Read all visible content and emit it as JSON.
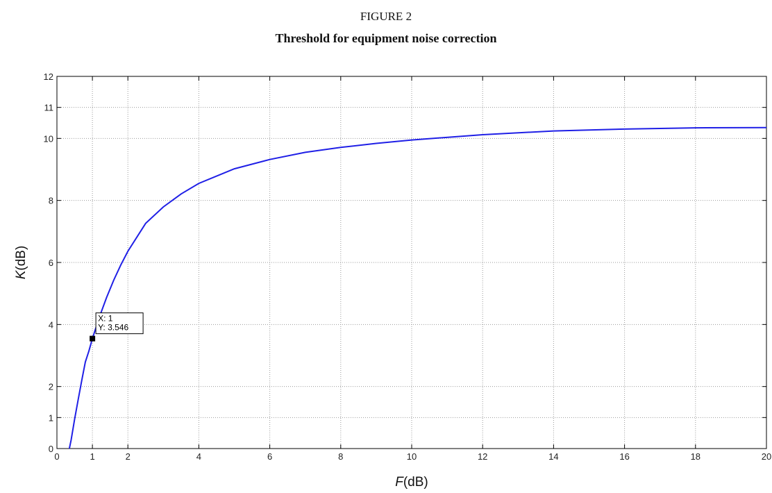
{
  "figure": {
    "label": "FIGURE 2",
    "title": "Threshold for equipment noise correction"
  },
  "chart_data": {
    "type": "line",
    "xlabel_var": "F",
    "xlabel_unit": "(dB)",
    "ylabel_var": "K",
    "ylabel_unit": "(dB)",
    "xlim": [
      0,
      20
    ],
    "ylim": [
      0,
      12
    ],
    "xticks": [
      0,
      1,
      2,
      4,
      6,
      8,
      10,
      12,
      14,
      16,
      18,
      20
    ],
    "yticks": [
      0,
      1,
      2,
      4,
      6,
      8,
      10,
      11,
      12
    ],
    "grid": true,
    "line_color": "#1f1fe6",
    "series": [
      {
        "x": [
          0.35,
          0.4,
          0.5,
          0.6,
          0.7,
          0.8,
          0.9,
          1.0,
          1.2,
          1.4,
          1.6,
          1.8,
          2.0,
          2.5,
          3.0,
          3.5,
          4.0,
          5.0,
          6.0,
          7.0,
          8.0,
          9.0,
          10.0,
          12.0,
          14.0,
          16.0,
          18.0,
          20.0
        ],
        "y": [
          0,
          0.27,
          0.95,
          1.59,
          2.2,
          2.79,
          3.14,
          3.546,
          4.25,
          4.87,
          5.43,
          5.92,
          6.36,
          7.26,
          7.79,
          8.21,
          8.55,
          9.02,
          9.32,
          9.55,
          9.71,
          9.84,
          9.95,
          10.12,
          10.24,
          10.3,
          10.34,
          10.35
        ]
      }
    ],
    "datatip": {
      "x_text": "X: 1",
      "y_text": "Y: 3.546",
      "x": 1,
      "y": 3.546
    }
  }
}
